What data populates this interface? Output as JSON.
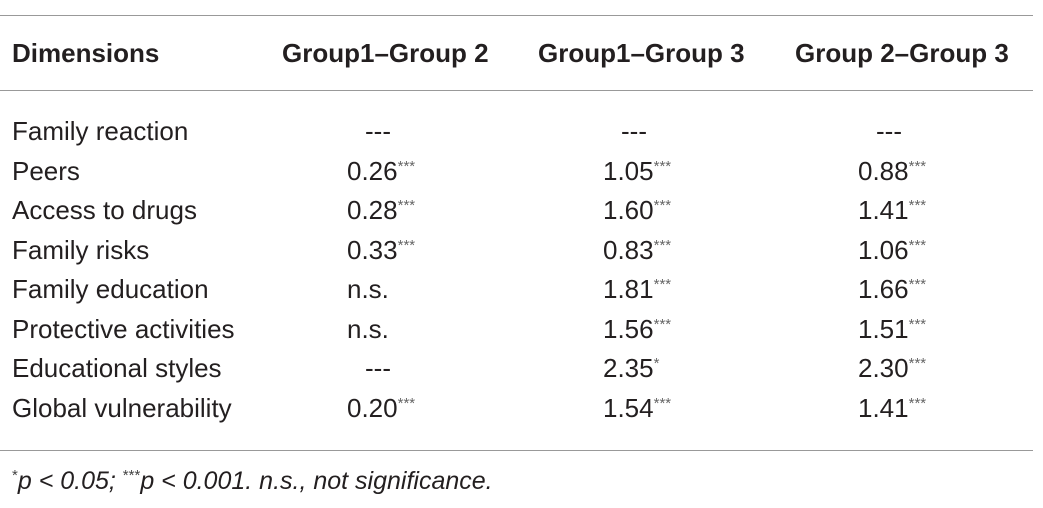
{
  "table": {
    "headers": [
      "Dimensions",
      "Group1–Group 2",
      "Group1–Group 3",
      "Group 2–Group 3"
    ],
    "rows": [
      [
        "Family reaction",
        "---",
        "---",
        "---"
      ],
      [
        "Peers",
        {
          "text": "0.26",
          "sup": "***"
        },
        {
          "text": "1.05",
          "sup": "***"
        },
        {
          "text": "0.88",
          "sup": "***"
        }
      ],
      [
        "Access to drugs",
        {
          "text": "0.28",
          "sup": "***"
        },
        {
          "text": "1.60",
          "sup": "***"
        },
        {
          "text": "1.41",
          "sup": "***"
        }
      ],
      [
        "Family risks",
        {
          "text": "0.33",
          "sup": "***"
        },
        {
          "text": "0.83",
          "sup": "***"
        },
        {
          "text": "1.06",
          "sup": "***"
        }
      ],
      [
        "Family education",
        "n.s.",
        {
          "text": "1.81",
          "sup": "***"
        },
        {
          "text": "1.66",
          "sup": "***"
        }
      ],
      [
        "Protective activities",
        "n.s.",
        {
          "text": "1.56",
          "sup": "***"
        },
        {
          "text": "1.51",
          "sup": "***"
        }
      ],
      [
        "Educational styles",
        "---",
        {
          "text": "2.35",
          "sup": "*"
        },
        {
          "text": "2.30",
          "sup": "***"
        }
      ],
      [
        "Global vulnerability",
        {
          "text": "0.20",
          "sup": "***"
        },
        {
          "text": "1.54",
          "sup": "***"
        },
        {
          "text": "1.41",
          "sup": "***"
        }
      ]
    ],
    "footnote": [
      {
        "sup": "*",
        "text": "p < 0.05;"
      },
      {
        "sup": "***",
        "text": "p < 0.001."
      },
      {
        "text": "n.s., not significance."
      }
    ]
  }
}
